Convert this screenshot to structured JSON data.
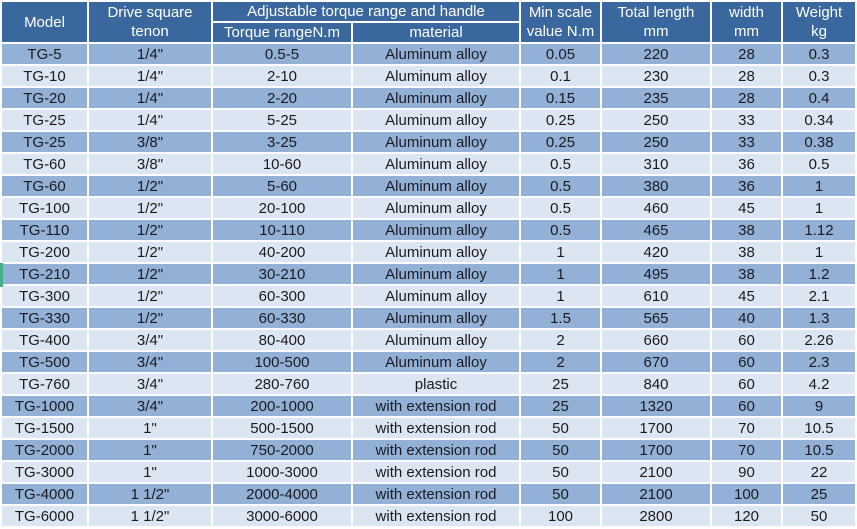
{
  "colors": {
    "header_bg": "#3a689e",
    "header_text": "#ffffff",
    "row_medium": "#93b1d6",
    "row_light": "#dce6f2",
    "grid": "#ffffff",
    "text_dark": "#1b1b1f",
    "marker_green": "#43b08e"
  },
  "table": {
    "header": {
      "model": "Model",
      "drive_line1": "Drive square",
      "drive_line2": "tenon",
      "torque_group": "Adjustable torque range and handle",
      "torque_range": "Torque rangeN.m",
      "material": "material",
      "min_scale_line1": "Min scale",
      "min_scale_line2": "value N.m",
      "total_length_line1": "Total length",
      "total_length_line2": "mm",
      "width_line1": "width",
      "width_line2": "mm",
      "weight_line1": "Weight",
      "weight_line2": "kg"
    },
    "columns": [
      "model",
      "drive-square-tenon",
      "torque-range",
      "material",
      "min-scale",
      "total-length",
      "width",
      "weight"
    ],
    "rows": [
      [
        "TG-5",
        "1/4\"",
        "0.5-5",
        "Aluminum alloy",
        "0.05",
        "220",
        "28",
        "0.3"
      ],
      [
        "TG-10",
        "1/4\"",
        "2-10",
        "Aluminum alloy",
        "0.1",
        "230",
        "28",
        "0.3"
      ],
      [
        "TG-20",
        "1/4\"",
        "2-20",
        "Aluminum alloy",
        "0.15",
        "235",
        "28",
        "0.4"
      ],
      [
        "TG-25",
        "1/4\"",
        "5-25",
        "Aluminum alloy",
        "0.25",
        "250",
        "33",
        "0.34"
      ],
      [
        "TG-25",
        "3/8\"",
        "3-25",
        "Aluminum alloy",
        "0.25",
        "250",
        "33",
        "0.38"
      ],
      [
        "TG-60",
        "3/8\"",
        "10-60",
        "Aluminum alloy",
        "0.5",
        "310",
        "36",
        "0.5"
      ],
      [
        "TG-60",
        "1/2\"",
        "5-60",
        "Aluminum alloy",
        "0.5",
        "380",
        "36",
        "1"
      ],
      [
        "TG-100",
        "1/2\"",
        "20-100",
        "Aluminum alloy",
        "0.5",
        "460",
        "45",
        "1"
      ],
      [
        "TG-110",
        "1/2\"",
        "10-110",
        "Aluminum alloy",
        "0.5",
        "465",
        "38",
        "1.12"
      ],
      [
        "TG-200",
        "1/2\"",
        "40-200",
        "Aluminum alloy",
        "1",
        "420",
        "38",
        "1"
      ],
      [
        "TG-210",
        "1/2\"",
        "30-210",
        "Aluminum alloy",
        "1",
        "495",
        "38",
        "1.2"
      ],
      [
        "TG-300",
        "1/2\"",
        "60-300",
        "Aluminum alloy",
        "1",
        "610",
        "45",
        "2.1"
      ],
      [
        "TG-330",
        "1/2\"",
        "60-330",
        "Aluminum alloy",
        "1.5",
        "565",
        "40",
        "1.3"
      ],
      [
        "TG-400",
        "3/4\"",
        "80-400",
        "Aluminum alloy",
        "2",
        "660",
        "60",
        "2.26"
      ],
      [
        "TG-500",
        "3/4\"",
        "100-500",
        "Aluminum alloy",
        "2",
        "670",
        "60",
        "2.3"
      ],
      [
        "TG-760",
        "3/4\"",
        "280-760",
        "plastic",
        "25",
        "840",
        "60",
        "4.2"
      ],
      [
        "TG-1000",
        "3/4\"",
        "200-1000",
        "with extension rod",
        "25",
        "1320",
        "60",
        "9"
      ],
      [
        "TG-1500",
        "1\"",
        "500-1500",
        "with extension rod",
        "50",
        "1700",
        "70",
        "10.5"
      ],
      [
        "TG-2000",
        "1\"",
        "750-2000",
        "with extension rod",
        "50",
        "1700",
        "70",
        "10.5"
      ],
      [
        "TG-3000",
        "1\"",
        "1000-3000",
        "with extension rod",
        "50",
        "2100",
        "90",
        "22"
      ],
      [
        "TG-4000",
        "1 1/2\"",
        "2000-4000",
        "with extension rod",
        "50",
        "2100",
        "100",
        "25"
      ],
      [
        "TG-6000",
        "1 1/2\"",
        "3000-6000",
        "with extension rod",
        "100",
        "2800",
        "120",
        "50"
      ]
    ],
    "marker_row_index": 10
  }
}
